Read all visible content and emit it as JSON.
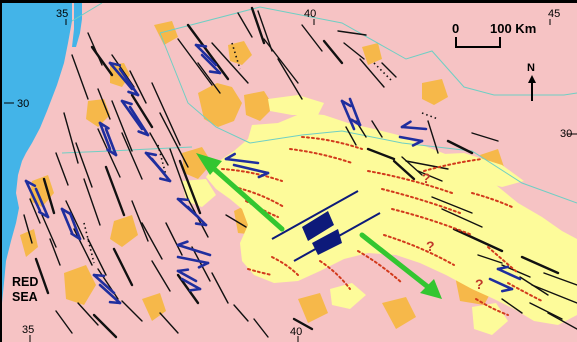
{
  "map": {
    "colors": {
      "land": "#f6c3c4",
      "sea": "#43b4e8",
      "basalt": "#f6b84a",
      "basin": "#fdfb9a",
      "border": "#6fcfc4",
      "fault_black": "#111111",
      "shear_blue": "#1f2e9e",
      "dotted_red": "#d23a1c",
      "extension_green": "#33c630",
      "block_navy": "#0d1a7a"
    },
    "graticule_labels": {
      "top_35": "35",
      "top_40": "40",
      "top_45": "45",
      "left_30": "30",
      "right_30": "30",
      "bottom_35": "35",
      "bottom_40": "40"
    },
    "sea_label_line1": "RED",
    "sea_label_line2": "SEA",
    "scale_bar": {
      "zero_label": "0",
      "distance_label": "100 Km"
    },
    "north_arrow": {
      "label": "N",
      "icon": "north-arrow-icon"
    },
    "question_marks": [
      "?",
      "?",
      "?"
    ]
  }
}
